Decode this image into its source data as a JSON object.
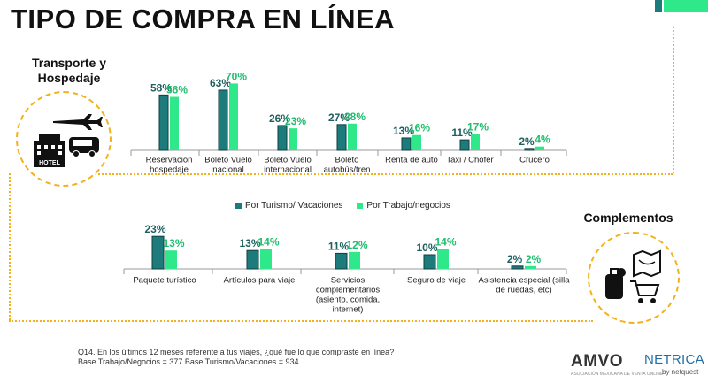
{
  "title": "TIPO DE COMPRA EN LÍNEA",
  "sections": {
    "transport": "Transporte y\nHospedaje",
    "complements": "Complementos"
  },
  "legend": [
    {
      "label": "Por Turismo/ Vacaciones",
      "color": "#1e7b7b"
    },
    {
      "label": "Por Trabajo/negocios",
      "color": "#2ee88a"
    }
  ],
  "colors": {
    "turismo": "#1e7b7b",
    "trabajo": "#2ee88a",
    "label_turismo": "#1e5f5f",
    "label_trabajo": "#1fbf6e",
    "accent": "#f2b21b"
  },
  "chart_data": [
    {
      "type": "bar",
      "categories": [
        "Reservación\nhospedaje",
        "Boleto Vuelo\nnacional",
        "Boleto Vuelo\ninternacional",
        "Boleto\nautobús/tren",
        "Renta de auto",
        "Taxi / Chofer",
        "Crucero"
      ],
      "series": [
        {
          "name": "Por Turismo/ Vacaciones",
          "values": [
            58,
            63,
            26,
            27,
            13,
            11,
            2
          ]
        },
        {
          "name": "Por Trabajo/negocios",
          "values": [
            56,
            70,
            23,
            28,
            16,
            17,
            4
          ]
        }
      ],
      "value_labels_suffix": "%",
      "ylim": [
        0,
        100
      ]
    },
    {
      "type": "bar",
      "categories": [
        "Paquete turístico",
        "Artículos para viaje",
        "Servicios\ncomplementarios\n(asiento, comida,\ninternet)",
        "Seguro de viaje",
        "Asistencia especial (silla\nde ruedas, etc)"
      ],
      "series": [
        {
          "name": "Por Turismo/ Vacaciones",
          "values": [
            23,
            13,
            11,
            10,
            2
          ]
        },
        {
          "name": "Por Trabajo/negocios",
          "values": [
            13,
            14,
            12,
            14,
            2
          ]
        }
      ],
      "value_labels_suffix": "%",
      "ylim": [
        0,
        100
      ]
    }
  ],
  "footnote": {
    "question": "Q14. En los últimos 12 meses referente a tus viajes, ¿qué fue lo que compraste en línea?",
    "base": "Base Trabajo/Negocios = 377  Base Turismo/Vacaciones = 934"
  },
  "logos": {
    "amvo": "AMVO",
    "amvo_sub": "ASOCIACIÓN MEXICANA DE VENTA ONLINE",
    "netrica": "NETRICA",
    "netrica_sub": "by netquest"
  },
  "icons": [
    "airplane-icon",
    "hotel-icon",
    "bus-icon",
    "map-icon",
    "luggage-icon",
    "shopping-cart-icon"
  ],
  "icon_labels": {
    "hotel": "HOTEL"
  }
}
